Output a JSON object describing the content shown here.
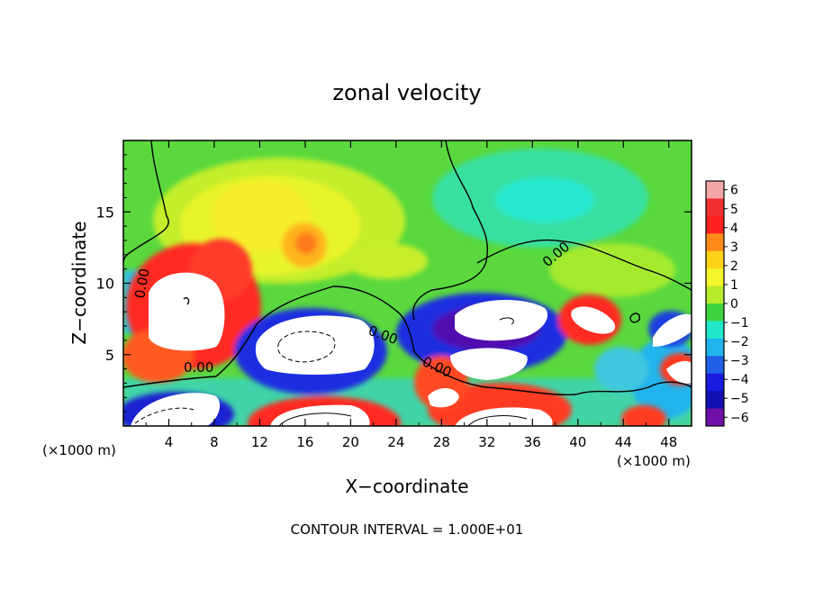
{
  "chart_data": {
    "type": "heatmap",
    "title": "zonal velocity",
    "xlabel": "X−coordinate",
    "ylabel": "Z−coordinate",
    "x_unit_left": "(×1000 m)",
    "x_unit_right": "(×1000 m)",
    "footer": "CONTOUR INTERVAL = 1.000E+01",
    "xlim": [
      0,
      50
    ],
    "ylim": [
      0,
      20
    ],
    "xticks": [
      4,
      8,
      12,
      16,
      20,
      24,
      28,
      32,
      36,
      40,
      44,
      48
    ],
    "yticks": [
      5,
      10,
      15
    ],
    "colorbar": {
      "levels": [
        6,
        5,
        4,
        3,
        2,
        1,
        0,
        -1,
        -2,
        -3,
        -4,
        -5,
        -6
      ],
      "colors": [
        "#f4a6a6",
        "#f03030",
        "#ff2020",
        "#ff8a1a",
        "#ffd21a",
        "#f4f62c",
        "#b6ec2c",
        "#3fd23f",
        "#20e8c8",
        "#20b4ec",
        "#2060e6",
        "#1a1ae0",
        "#1010b0",
        "#7010a8"
      ]
    },
    "contour_labels": [
      "0.00",
      "0.00",
      "0.00",
      "0.00",
      "0.00"
    ]
  }
}
